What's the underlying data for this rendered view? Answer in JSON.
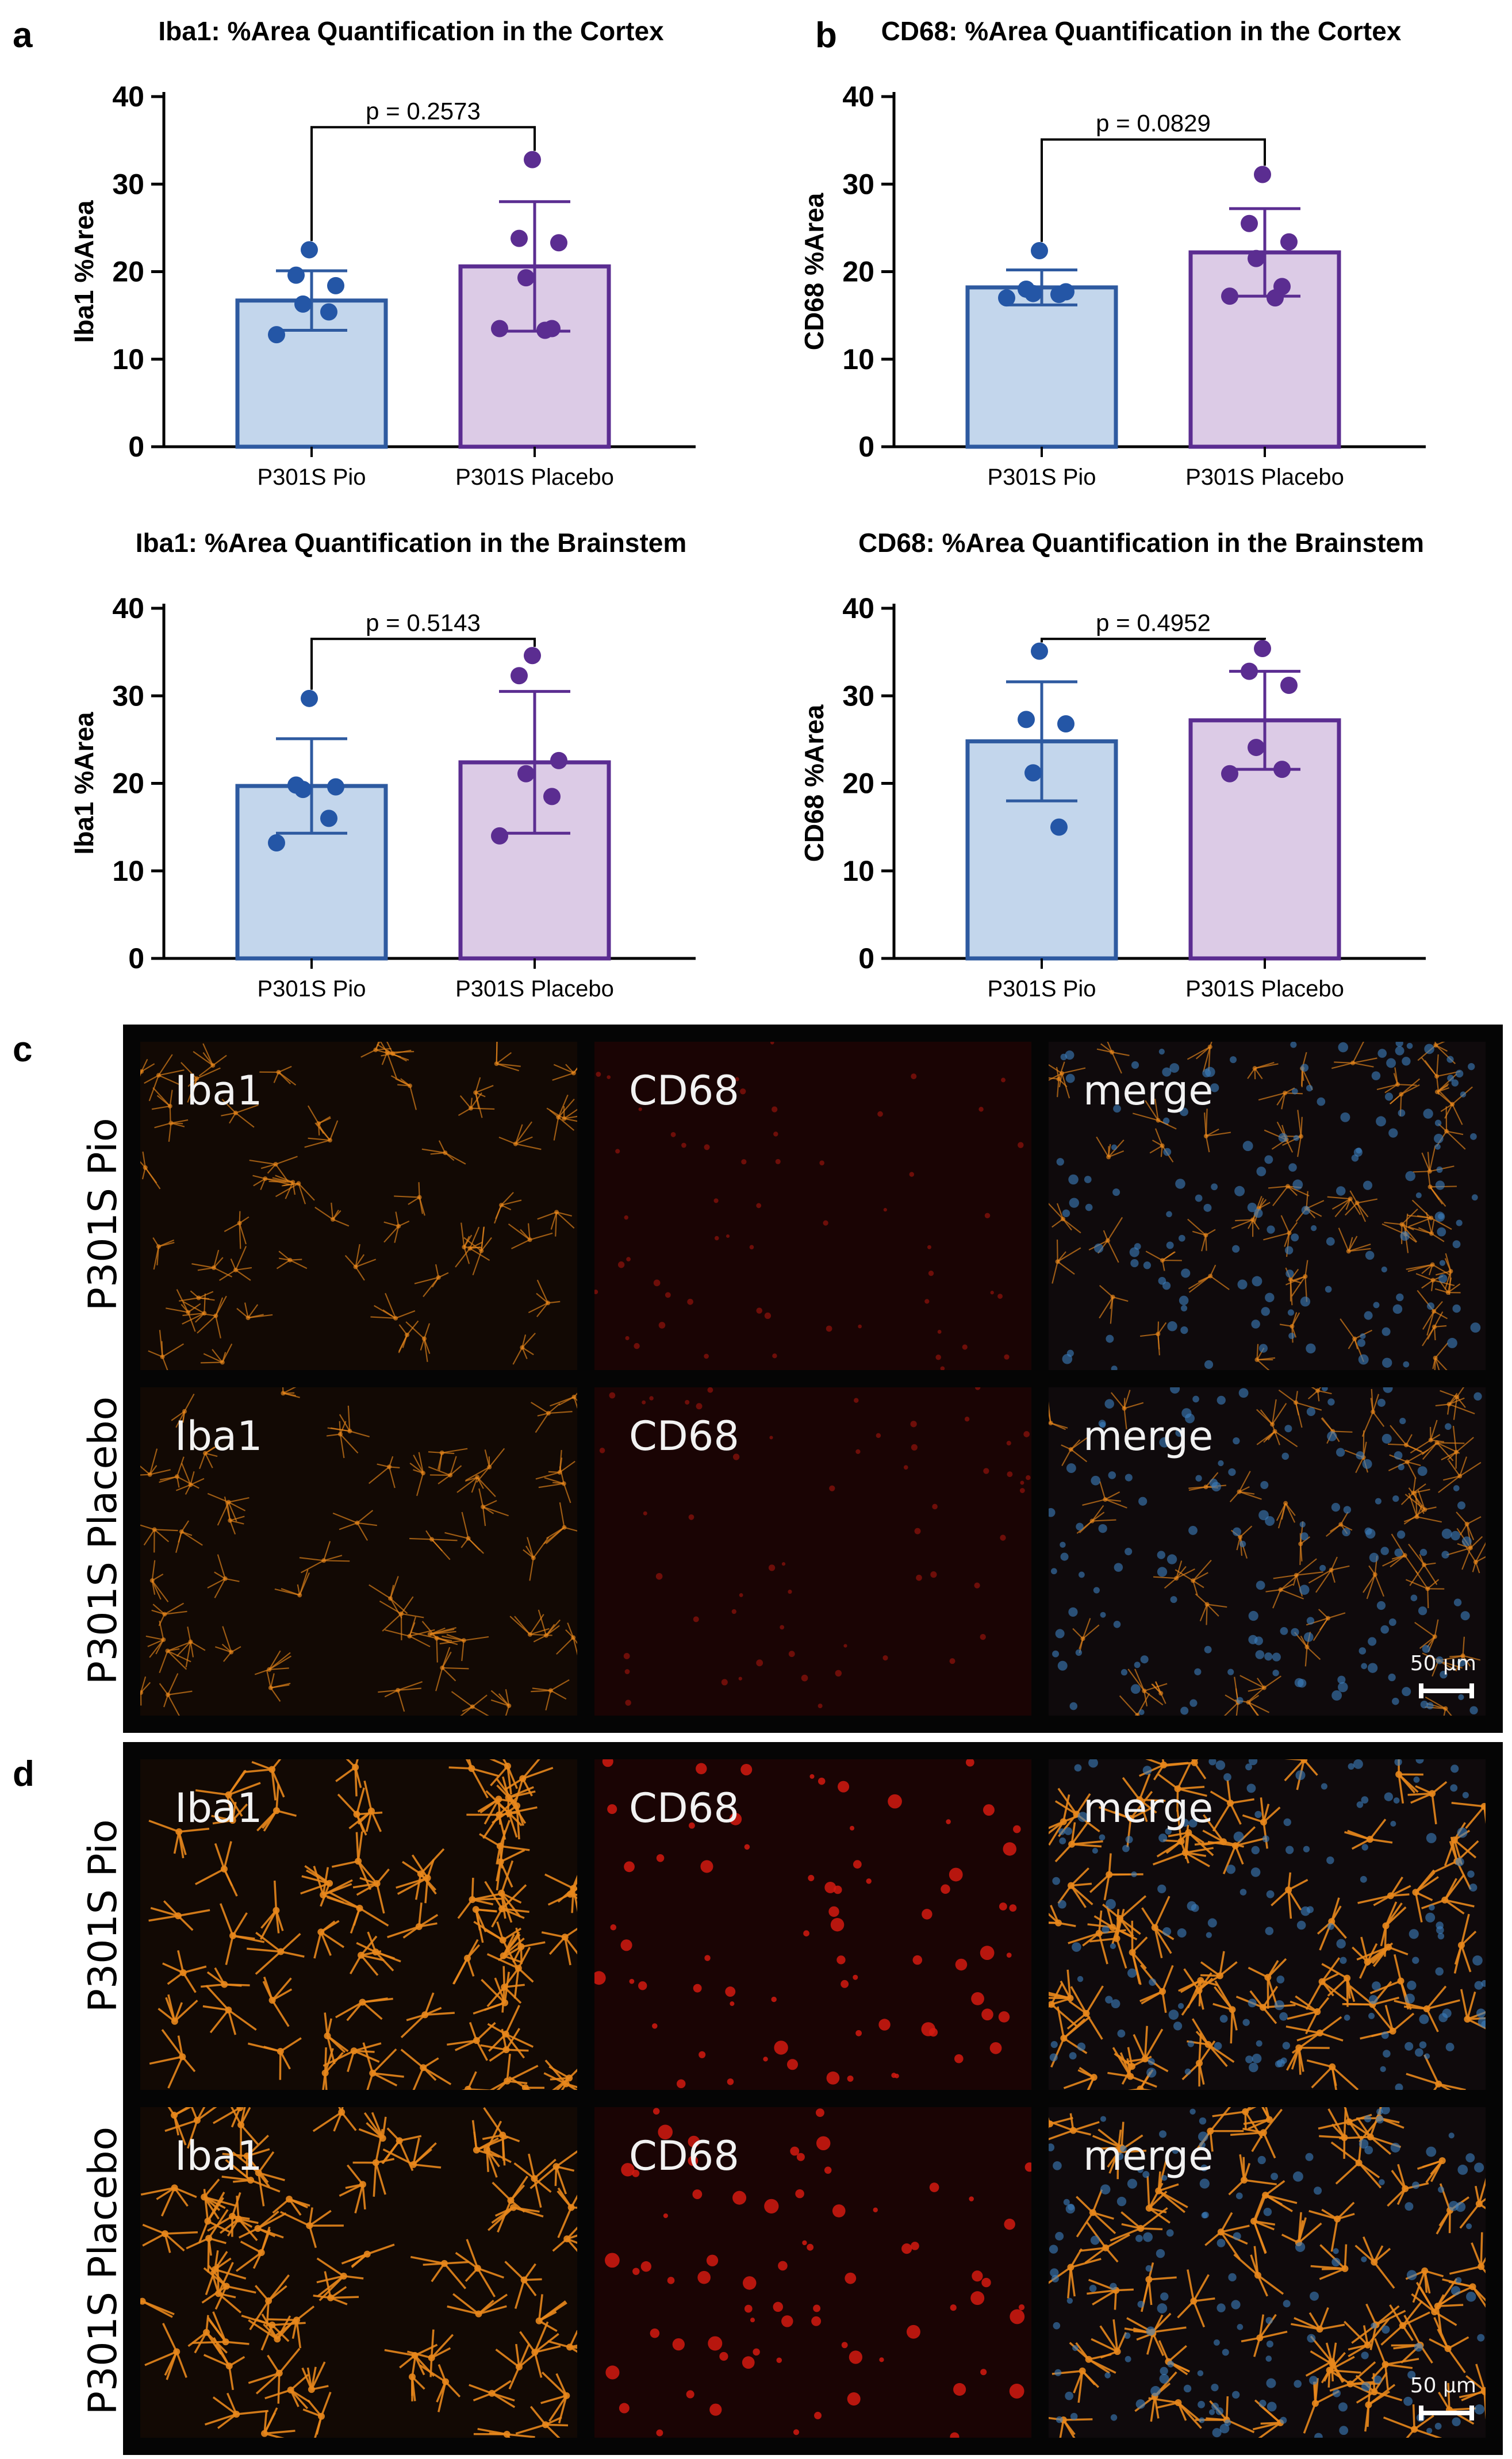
{
  "panel_labels": {
    "a": "a",
    "b": "b",
    "c": "c",
    "d": "d"
  },
  "chart_data": [
    {
      "id": "a1",
      "type": "bar",
      "title": "Iba1: %Area Quantification in the Cortex",
      "ylabel": "Iba1 %Area",
      "categories": [
        "P301S Pio",
        "P301S Placebo"
      ],
      "values": [
        16.7,
        20.6
      ],
      "sd": [
        3.4,
        7.4
      ],
      "ylim": [
        0,
        40
      ],
      "yticks": [
        0,
        10,
        20,
        30,
        40
      ],
      "points": [
        [
          22.5,
          19.6,
          18.4,
          16.3,
          15.4,
          12.8
        ],
        [
          32.8,
          23.8,
          23.3,
          19.3,
          13.5,
          13.5,
          13.3
        ]
      ],
      "p_value": "p = 0.2573"
    },
    {
      "id": "b1",
      "type": "bar",
      "title": "CD68: %Area Quantification in the Cortex",
      "ylabel": "CD68 %Area",
      "categories": [
        "P301S Pio",
        "P301S Placebo"
      ],
      "values": [
        18.2,
        22.2
      ],
      "sd": [
        2.0,
        5.0
      ],
      "ylim": [
        0,
        40
      ],
      "yticks": [
        0,
        10,
        20,
        30,
        40
      ],
      "points": [
        [
          22.4,
          18.0,
          17.7,
          17.5,
          17.4,
          17.0
        ],
        [
          31.1,
          25.5,
          23.4,
          21.5,
          18.3,
          17.2,
          17.0
        ]
      ],
      "p_value": "p = 0.0829"
    },
    {
      "id": "a2",
      "type": "bar",
      "title": "Iba1: %Area Quantification in the Brainstem",
      "ylabel": "Iba1 %Area",
      "categories": [
        "P301S Pio",
        "P301S Placebo"
      ],
      "values": [
        19.7,
        22.4
      ],
      "sd": [
        5.4,
        8.1
      ],
      "ylim": [
        0,
        40
      ],
      "yticks": [
        0,
        10,
        20,
        30,
        40
      ],
      "points": [
        [
          29.7,
          19.8,
          19.6,
          19.3,
          16.0,
          13.2
        ],
        [
          34.6,
          32.3,
          22.6,
          21.1,
          18.5,
          14.0
        ]
      ],
      "p_value": "p = 0.5143"
    },
    {
      "id": "b2",
      "type": "bar",
      "title": "CD68: %Area Quantification in the Brainstem",
      "ylabel": "CD68 %Area",
      "categories": [
        "P301S Pio",
        "P301S Placebo"
      ],
      "values": [
        24.8,
        27.2
      ],
      "sd": [
        6.8,
        5.6
      ],
      "ylim": [
        0,
        40
      ],
      "yticks": [
        0,
        10,
        20,
        30,
        40
      ],
      "points": [
        [
          35.1,
          27.3,
          26.8,
          21.2,
          15.0
        ],
        [
          35.4,
          32.8,
          31.2,
          24.1,
          21.6,
          21.1
        ]
      ],
      "p_value": "p = 0.4952"
    }
  ],
  "colors": {
    "pio_fill": "#c3d6ec",
    "pio_edge": "#2e5aa0",
    "pio_dot": "#2456a6",
    "placebo_fill": "#dccbe6",
    "placebo_edge": "#5b2d91",
    "placebo_dot": "#5b2d91"
  },
  "micrographs": {
    "c": {
      "rows": [
        "P301S Pio",
        "P301S Placebo"
      ],
      "columns": [
        "Iba1",
        "CD68",
        "merge"
      ],
      "scale_bar": "50 µm"
    },
    "d": {
      "rows": [
        "P301S Pio",
        "P301S Placebo"
      ],
      "columns": [
        "Iba1",
        "CD68",
        "merge"
      ],
      "scale_bar": "50 µm"
    }
  }
}
